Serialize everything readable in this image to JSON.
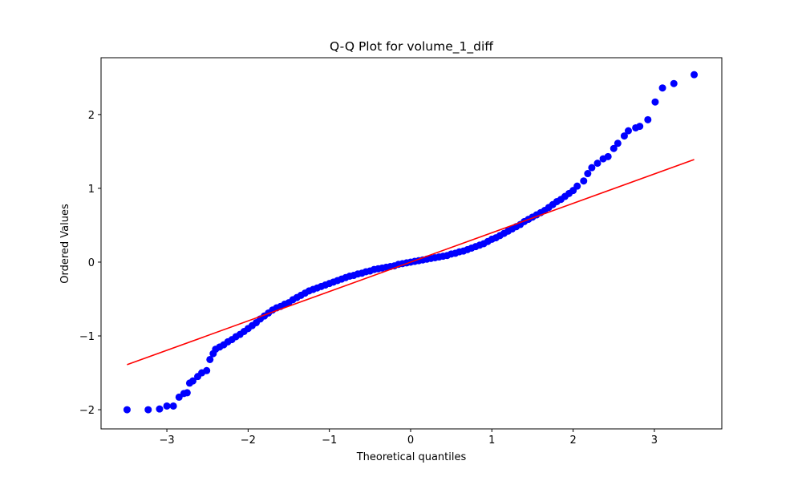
{
  "chart_data": {
    "type": "scatter",
    "title": "Q-Q Plot for volume_1_diff",
    "x_label": "Theoretical quantiles",
    "y_label": "Ordered Values",
    "x": [
      -3.49,
      -3.23,
      -3.09,
      -3.0,
      -2.92,
      -2.85,
      -2.79,
      -2.75,
      -2.72,
      -2.68,
      -2.62,
      -2.57,
      -2.51,
      -2.47,
      -2.43,
      -2.4,
      -2.35,
      -2.3,
      -2.25,
      -2.2,
      -2.15,
      -2.1,
      -2.05,
      -2.0,
      -1.95,
      -1.9,
      -1.85,
      -1.8,
      -1.75,
      -1.7,
      -1.65,
      -1.6,
      -1.55,
      -1.5,
      -1.45,
      -1.4,
      -1.35,
      -1.3,
      -1.25,
      -1.2,
      -1.15,
      -1.1,
      -1.05,
      -1.0,
      -0.95,
      -0.9,
      -0.85,
      -0.8,
      -0.75,
      -0.7,
      -0.65,
      -0.6,
      -0.55,
      -0.5,
      -0.45,
      -0.4,
      -0.35,
      -0.3,
      -0.25,
      -0.2,
      -0.15,
      -0.1,
      -0.05,
      0,
      0.05,
      0.1,
      0.15,
      0.2,
      0.25,
      0.3,
      0.35,
      0.4,
      0.45,
      0.5,
      0.55,
      0.6,
      0.65,
      0.7,
      0.75,
      0.8,
      0.85,
      0.9,
      0.95,
      1.0,
      1.05,
      1.1,
      1.15,
      1.2,
      1.25,
      1.3,
      1.35,
      1.4,
      1.45,
      1.5,
      1.55,
      1.6,
      1.65,
      1.7,
      1.75,
      1.8,
      1.85,
      1.9,
      1.95,
      2.0,
      2.05,
      2.13,
      2.18,
      2.23,
      2.3,
      2.37,
      2.43,
      2.5,
      2.55,
      2.63,
      2.68,
      2.77,
      2.82,
      2.92,
      3.01,
      3.1,
      3.24,
      3.49
    ],
    "values": [
      -2.0,
      -2.0,
      -1.99,
      -1.95,
      -1.95,
      -1.83,
      -1.78,
      -1.77,
      -1.64,
      -1.61,
      -1.55,
      -1.5,
      -1.47,
      -1.32,
      -1.24,
      -1.18,
      -1.15,
      -1.12,
      -1.08,
      -1.05,
      -1.01,
      -0.98,
      -0.94,
      -0.9,
      -0.86,
      -0.82,
      -0.77,
      -0.73,
      -0.69,
      -0.65,
      -0.62,
      -0.6,
      -0.57,
      -0.55,
      -0.51,
      -0.48,
      -0.45,
      -0.42,
      -0.39,
      -0.37,
      -0.35,
      -0.33,
      -0.31,
      -0.29,
      -0.27,
      -0.25,
      -0.23,
      -0.21,
      -0.19,
      -0.18,
      -0.16,
      -0.15,
      -0.13,
      -0.12,
      -0.1,
      -0.09,
      -0.08,
      -0.07,
      -0.06,
      -0.05,
      -0.03,
      -0.02,
      -0.01,
      0,
      0.01,
      0.02,
      0.03,
      0.04,
      0.05,
      0.06,
      0.07,
      0.08,
      0.09,
      0.11,
      0.12,
      0.14,
      0.15,
      0.17,
      0.19,
      0.21,
      0.23,
      0.25,
      0.28,
      0.31,
      0.33,
      0.36,
      0.39,
      0.42,
      0.45,
      0.48,
      0.51,
      0.55,
      0.58,
      0.61,
      0.64,
      0.67,
      0.7,
      0.74,
      0.78,
      0.82,
      0.85,
      0.89,
      0.93,
      0.97,
      1.03,
      1.1,
      1.2,
      1.28,
      1.34,
      1.4,
      1.43,
      1.54,
      1.61,
      1.71,
      1.78,
      1.82,
      1.84,
      1.93,
      2.17,
      2.36,
      2.42,
      2.54
    ],
    "color": "#0000ff",
    "fit_line": {
      "x": [
        -3.49,
        3.49
      ],
      "values": [
        -1.39,
        1.39
      ],
      "color": "#ff0000"
    },
    "xlim": [
      -3.81,
      3.83
    ],
    "ylim": [
      -2.26,
      2.77
    ],
    "xticks": [
      {
        "value": -3,
        "label": "−3"
      },
      {
        "value": -2,
        "label": "−2"
      },
      {
        "value": -1,
        "label": "−1"
      },
      0,
      1,
      2,
      3
    ],
    "yticks": [
      {
        "value": -2,
        "label": "−2"
      },
      {
        "value": -1,
        "label": "−1"
      },
      0,
      1,
      2
    ],
    "grid": false
  }
}
